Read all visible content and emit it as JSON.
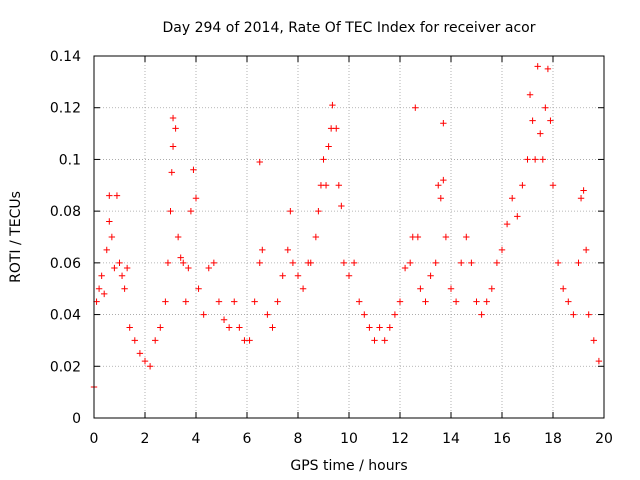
{
  "chart_data": {
    "type": "scatter",
    "title": "Day 294 of 2014, Rate Of TEC Index for receiver acor",
    "xlabel": "GPS time / hours",
    "ylabel": "ROTI / TECUs",
    "xlim": [
      0,
      20
    ],
    "ylim": [
      0,
      0.14
    ],
    "xticks": [
      0,
      2,
      4,
      6,
      8,
      10,
      12,
      14,
      16,
      18,
      20
    ],
    "yticks": [
      0,
      0.02,
      0.04,
      0.06,
      0.08,
      0.1,
      0.12,
      0.14
    ],
    "xtick_labels": [
      "0",
      "2",
      "4",
      "6",
      "8",
      "10",
      "12",
      "14",
      "16",
      "18",
      "20"
    ],
    "ytick_labels": [
      "0",
      "0.02",
      "0.04",
      "0.06",
      "0.08",
      "0.1",
      "0.12",
      "0.14"
    ],
    "grid": true,
    "marker": "+",
    "series": [
      {
        "name": "ROTI",
        "color": "#ff0000",
        "points": [
          [
            0.0,
            0.012
          ],
          [
            0.1,
            0.045
          ],
          [
            0.2,
            0.05
          ],
          [
            0.3,
            0.055
          ],
          [
            0.4,
            0.048
          ],
          [
            0.5,
            0.065
          ],
          [
            0.6,
            0.076
          ],
          [
            0.6,
            0.086
          ],
          [
            0.7,
            0.07
          ],
          [
            0.8,
            0.058
          ],
          [
            0.9,
            0.086
          ],
          [
            1.0,
            0.06
          ],
          [
            1.1,
            0.055
          ],
          [
            1.2,
            0.05
          ],
          [
            1.3,
            0.058
          ],
          [
            1.4,
            0.035
          ],
          [
            1.6,
            0.03
          ],
          [
            1.8,
            0.025
          ],
          [
            2.0,
            0.022
          ],
          [
            2.2,
            0.02
          ],
          [
            2.4,
            0.03
          ],
          [
            2.6,
            0.035
          ],
          [
            2.8,
            0.045
          ],
          [
            2.9,
            0.06
          ],
          [
            3.0,
            0.08
          ],
          [
            3.05,
            0.095
          ],
          [
            3.1,
            0.105
          ],
          [
            3.1,
            0.116
          ],
          [
            3.2,
            0.112
          ],
          [
            3.3,
            0.07
          ],
          [
            3.4,
            0.062
          ],
          [
            3.5,
            0.06
          ],
          [
            3.6,
            0.045
          ],
          [
            3.7,
            0.058
          ],
          [
            3.8,
            0.08
          ],
          [
            3.9,
            0.096
          ],
          [
            4.0,
            0.085
          ],
          [
            4.1,
            0.05
          ],
          [
            4.3,
            0.04
          ],
          [
            4.5,
            0.058
          ],
          [
            4.7,
            0.06
          ],
          [
            4.9,
            0.045
          ],
          [
            5.1,
            0.038
          ],
          [
            5.3,
            0.035
          ],
          [
            5.5,
            0.045
          ],
          [
            5.7,
            0.035
          ],
          [
            5.9,
            0.03
          ],
          [
            6.1,
            0.03
          ],
          [
            6.3,
            0.045
          ],
          [
            6.5,
            0.06
          ],
          [
            6.5,
            0.099
          ],
          [
            6.6,
            0.065
          ],
          [
            6.8,
            0.04
          ],
          [
            7.0,
            0.035
          ],
          [
            7.2,
            0.045
          ],
          [
            7.4,
            0.055
          ],
          [
            7.6,
            0.065
          ],
          [
            7.7,
            0.08
          ],
          [
            7.8,
            0.06
          ],
          [
            8.0,
            0.055
          ],
          [
            8.2,
            0.05
          ],
          [
            8.4,
            0.06
          ],
          [
            8.5,
            0.06
          ],
          [
            8.7,
            0.07
          ],
          [
            8.8,
            0.08
          ],
          [
            8.9,
            0.09
          ],
          [
            9.0,
            0.1
          ],
          [
            9.1,
            0.09
          ],
          [
            9.2,
            0.105
          ],
          [
            9.3,
            0.112
          ],
          [
            9.35,
            0.121
          ],
          [
            9.5,
            0.112
          ],
          [
            9.6,
            0.09
          ],
          [
            9.7,
            0.082
          ],
          [
            9.8,
            0.06
          ],
          [
            10.0,
            0.055
          ],
          [
            10.2,
            0.06
          ],
          [
            10.4,
            0.045
          ],
          [
            10.6,
            0.04
          ],
          [
            10.8,
            0.035
          ],
          [
            11.0,
            0.03
          ],
          [
            11.2,
            0.035
          ],
          [
            11.4,
            0.03
          ],
          [
            11.6,
            0.035
          ],
          [
            11.8,
            0.04
          ],
          [
            12.0,
            0.045
          ],
          [
            12.2,
            0.058
          ],
          [
            12.4,
            0.06
          ],
          [
            12.5,
            0.07
          ],
          [
            12.6,
            0.12
          ],
          [
            12.7,
            0.07
          ],
          [
            12.8,
            0.05
          ],
          [
            13.0,
            0.045
          ],
          [
            13.2,
            0.055
          ],
          [
            13.4,
            0.06
          ],
          [
            13.5,
            0.09
          ],
          [
            13.6,
            0.085
          ],
          [
            13.7,
            0.114
          ],
          [
            13.7,
            0.092
          ],
          [
            13.8,
            0.07
          ],
          [
            14.0,
            0.05
          ],
          [
            14.2,
            0.045
          ],
          [
            14.4,
            0.06
          ],
          [
            14.6,
            0.07
          ],
          [
            14.8,
            0.06
          ],
          [
            15.0,
            0.045
          ],
          [
            15.2,
            0.04
          ],
          [
            15.4,
            0.045
          ],
          [
            15.6,
            0.05
          ],
          [
            15.8,
            0.06
          ],
          [
            16.0,
            0.065
          ],
          [
            16.2,
            0.075
          ],
          [
            16.4,
            0.085
          ],
          [
            16.6,
            0.078
          ],
          [
            16.8,
            0.09
          ],
          [
            17.0,
            0.1
          ],
          [
            17.1,
            0.125
          ],
          [
            17.2,
            0.115
          ],
          [
            17.3,
            0.1
          ],
          [
            17.4,
            0.136
          ],
          [
            17.5,
            0.11
          ],
          [
            17.6,
            0.1
          ],
          [
            17.7,
            0.12
          ],
          [
            17.8,
            0.135
          ],
          [
            17.9,
            0.115
          ],
          [
            18.0,
            0.09
          ],
          [
            18.2,
            0.06
          ],
          [
            18.4,
            0.05
          ],
          [
            18.6,
            0.045
          ],
          [
            18.8,
            0.04
          ],
          [
            19.0,
            0.06
          ],
          [
            19.1,
            0.085
          ],
          [
            19.2,
            0.088
          ],
          [
            19.3,
            0.065
          ],
          [
            19.4,
            0.04
          ],
          [
            19.6,
            0.03
          ],
          [
            19.8,
            0.022
          ]
        ]
      }
    ]
  }
}
